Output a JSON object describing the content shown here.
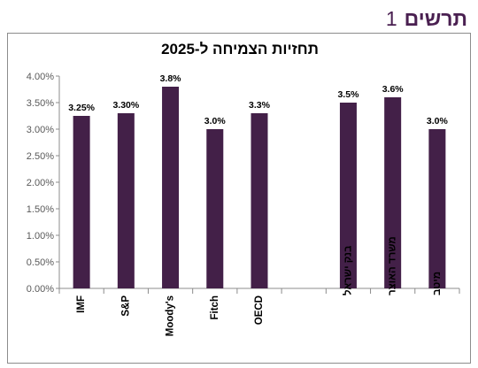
{
  "page_heading": {
    "word": "תרשים",
    "number": "1"
  },
  "chart_data": {
    "type": "bar",
    "title": "תחזיות הצמיחה ל-2025",
    "xlabel": "",
    "ylabel": "",
    "ylim": [
      0,
      0.04
    ],
    "yticks": [
      "0.00%",
      "0.50%",
      "1.00%",
      "1.50%",
      "2.00%",
      "2.50%",
      "3.00%",
      "3.50%",
      "4.00%"
    ],
    "grid": false,
    "legend": "none",
    "bar_color": "#432048",
    "groups": [
      {
        "categories": [
          "IMF",
          "S&P",
          "Moody's",
          "Fitch",
          "OECD"
        ],
        "values": [
          0.0325,
          0.033,
          0.038,
          0.03,
          0.033
        ],
        "labels": [
          "3.25%",
          "3.30%",
          "3.8%",
          "3.0%",
          "3.3%"
        ]
      },
      {
        "categories": [
          "בנק ישראל",
          "משרד האוצר",
          "מיטב"
        ],
        "values": [
          0.035,
          0.036,
          0.03
        ],
        "labels": [
          "3.5%",
          "3.6%",
          "3.0%"
        ]
      }
    ]
  }
}
